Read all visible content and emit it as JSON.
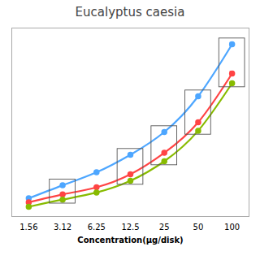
{
  "chart_data": {
    "type": "line",
    "title": "Eucalyptus caesia",
    "xlabel": "Concentration(μg/disk)",
    "categories": [
      "1.56",
      "3.12",
      "6.25",
      "12.5",
      "25",
      "50",
      "100"
    ],
    "series": [
      {
        "color": "#4DA6FF",
        "values": [
          1.8,
          3.8,
          5.8,
          8.5,
          12.0,
          17.5,
          25.5
        ],
        "yerr": [
          0.1,
          0.1,
          0.12,
          0.15,
          0.18,
          0.22,
          0.28
        ]
      },
      {
        "color": "#FF4444",
        "values": [
          1.2,
          2.4,
          3.5,
          5.5,
          8.8,
          13.5,
          21.0
        ],
        "yerr": [
          0.1,
          0.1,
          0.12,
          0.15,
          0.2,
          0.25,
          0.35
        ]
      },
      {
        "color": "#88BB00",
        "values": [
          0.5,
          1.6,
          2.7,
          4.5,
          7.5,
          12.2,
          19.5
        ],
        "yerr": [
          0.05,
          0.08,
          0.1,
          0.12,
          0.15,
          0.18,
          0.22
        ]
      }
    ],
    "boxes": [
      {
        "category": "3.12",
        "y_low": 1.0,
        "y_high": 4.7
      },
      {
        "category": "12.5",
        "y_low": 3.9,
        "y_high": 9.4
      },
      {
        "category": "25",
        "y_low": 6.9,
        "y_high": 12.9
      },
      {
        "category": "50",
        "y_low": 11.6,
        "y_high": 18.4
      },
      {
        "category": "100",
        "y_low": 18.9,
        "y_high": 26.4
      }
    ],
    "marker": "circle",
    "ylim": [
      -1,
      28
    ],
    "tick_labels": "x",
    "grid": false
  }
}
